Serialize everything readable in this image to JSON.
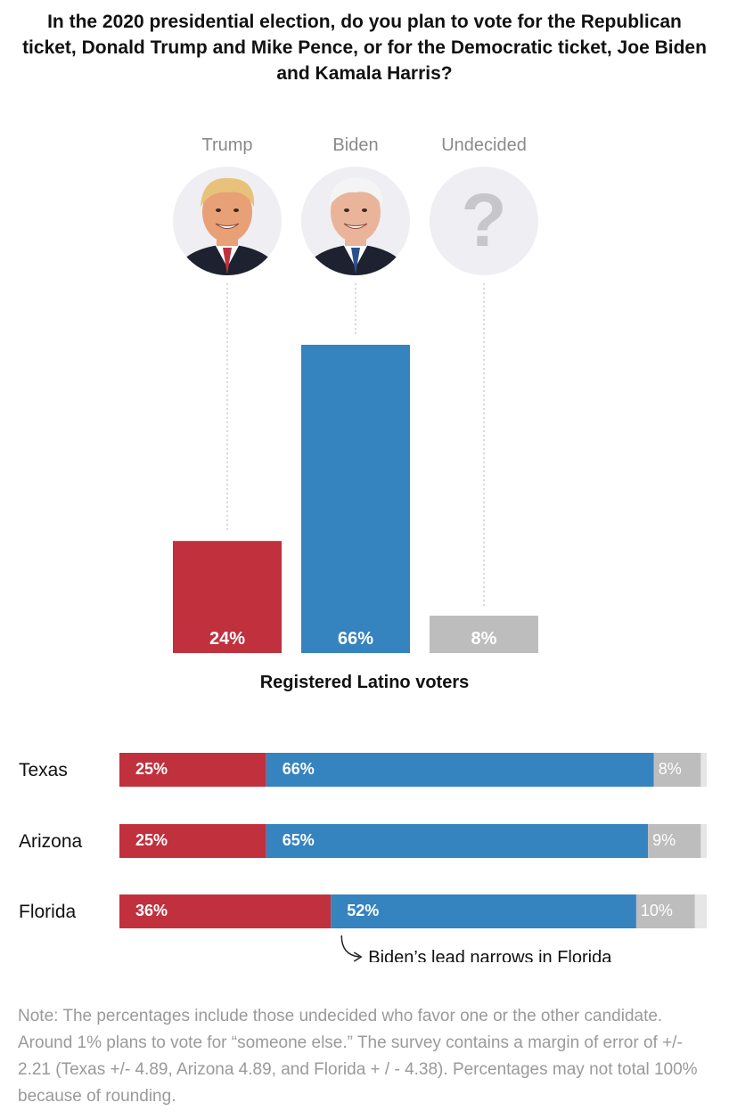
{
  "title": "In the 2020 presidential election, do you plan to vote for the Republican ticket, Donald Trump and Mike Pence, or for the Democratic ticket, Joe Biden and Kamala Harris?",
  "colors": {
    "trump": "#c0313d",
    "biden": "#3583bf",
    "undecided": "#bdbdbd",
    "other": "#e6e6e6"
  },
  "chart_data": [
    {
      "type": "bar",
      "title": "In the 2020 presidential election, do you plan to vote for the Republican ticket, Donald Trump and Mike Pence, or for the Democratic ticket, Joe Biden and Kamala Harris?",
      "categories": [
        "Trump",
        "Biden",
        "Undecided"
      ],
      "values": [
        24,
        66,
        8
      ],
      "value_labels": [
        "24%",
        "66%",
        "8%"
      ],
      "icons": [
        "trump-portrait-icon",
        "biden-portrait-icon",
        "question-mark-icon"
      ],
      "xlabel": "Registered Latino voters",
      "ylabel": "",
      "ylim": [
        0,
        66
      ],
      "grid": false
    },
    {
      "type": "bar",
      "orientation": "horizontal-stacked",
      "categories": [
        "Texas",
        "Arizona",
        "Florida"
      ],
      "series": [
        {
          "values": [
            25,
            25,
            36
          ],
          "labels": [
            "25%",
            "25%",
            "36%"
          ]
        },
        {
          "values": [
            66,
            65,
            52
          ],
          "labels": [
            "66%",
            "65%",
            "52%"
          ]
        },
        {
          "values": [
            8,
            9,
            10
          ],
          "labels": [
            "8%",
            "9%",
            "10%"
          ]
        },
        {
          "values": [
            1,
            1,
            2
          ],
          "labels": [
            "",
            "",
            ""
          ]
        }
      ],
      "xlim": [
        0,
        100
      ],
      "annotations": [
        {
          "text": "Biden’s lead narrows in Florida",
          "category": "Florida"
        }
      ],
      "grid": false
    }
  ],
  "note": "Note: The percentages include those undecided who favor one or the other candidate. Around 1% plans to vote for “someone else.” The survey contains a margin of error of +/- 2.21 (Texas +/- 4.89, Arizona 4.89, and Florida + / - 4.38). Percentages may not total 100% because of rounding."
}
